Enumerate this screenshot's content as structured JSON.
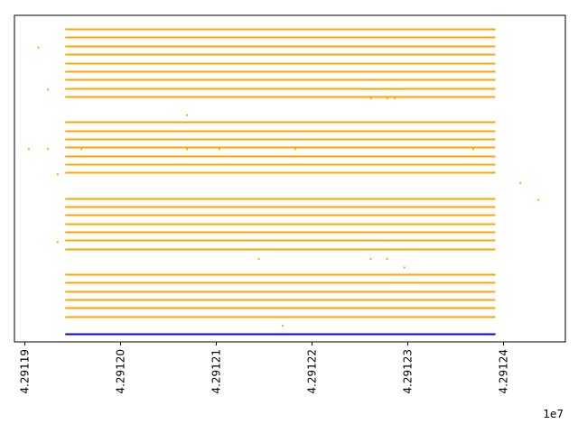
{
  "chart_data": {
    "type": "line",
    "title": "",
    "xlabel": "",
    "ylabel": "",
    "x_offset_label": "1e7",
    "xlim": [
      4.291189,
      4.2912465
    ],
    "ylim": [
      -1.0,
      37.6
    ],
    "grid": false,
    "x_ticks": [
      {
        "value": 4.29119,
        "label": "4.29119"
      },
      {
        "value": 4.2912,
        "label": "4.29120"
      },
      {
        "value": 4.29121,
        "label": "4.29121"
      },
      {
        "value": 4.29122,
        "label": "4.29122"
      },
      {
        "value": 4.29123,
        "label": "4.29123"
      },
      {
        "value": 4.29124,
        "label": "4.29124"
      }
    ],
    "y_ticks": [],
    "colors": {
      "orange": "#ffa500",
      "blue": "#0000ff"
    },
    "segment_x": [
      4.2911943,
      4.2912392
    ],
    "series": [
      {
        "name": "blue-line",
        "color": "#0000ff",
        "y": [
          0
        ]
      },
      {
        "name": "orange-lines",
        "color": "#ffa500",
        "y": [
          2,
          3,
          4,
          5,
          6,
          7,
          10,
          11,
          12,
          13,
          14,
          15,
          16,
          19,
          20,
          21,
          22,
          23,
          24,
          25,
          28,
          29,
          30,
          31,
          32,
          33,
          34,
          35,
          36
        ]
      }
    ],
    "points": [
      {
        "x": 4.2911915,
        "y": 33.8
      },
      {
        "x": 4.2911925,
        "y": 28.8
      },
      {
        "x": 4.2911905,
        "y": 21.8
      },
      {
        "x": 4.2911925,
        "y": 21.8
      },
      {
        "x": 4.291196,
        "y": 21.8
      },
      {
        "x": 4.291207,
        "y": 25.8
      },
      {
        "x": 4.291207,
        "y": 21.8
      },
      {
        "x": 4.2912104,
        "y": 21.8
      },
      {
        "x": 4.2912183,
        "y": 21.8
      },
      {
        "x": 4.2912262,
        "y": 27.8
      },
      {
        "x": 4.2912279,
        "y": 27.8
      },
      {
        "x": 4.2912287,
        "y": 27.8
      },
      {
        "x": 4.2912369,
        "y": 21.8
      },
      {
        "x": 4.2911935,
        "y": 18.8
      },
      {
        "x": 4.2912418,
        "y": 17.8
      },
      {
        "x": 4.2912437,
        "y": 15.8
      },
      {
        "x": 4.2911935,
        "y": 10.8
      },
      {
        "x": 4.2912145,
        "y": 8.8
      },
      {
        "x": 4.2912262,
        "y": 8.8
      },
      {
        "x": 4.2912279,
        "y": 8.8
      },
      {
        "x": 4.2912297,
        "y": 7.8
      },
      {
        "x": 4.291217,
        "y": 0.9
      }
    ]
  }
}
